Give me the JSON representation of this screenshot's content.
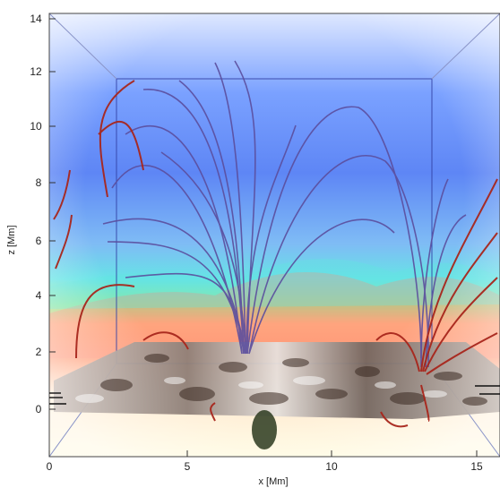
{
  "figure": {
    "x_axis": {
      "label": "x [Mm]",
      "ticks": [
        "0",
        "5",
        "10",
        "15"
      ]
    },
    "z_axis": {
      "label": "z [Mm]",
      "ticks": [
        "14",
        "12",
        "10",
        "8",
        "6",
        "4",
        "2",
        "0"
      ]
    }
  },
  "colors": {
    "top_blue": "#3a6fe6",
    "sky_blue": "#8fb3ff",
    "cyan": "#5fe9e0",
    "green": "#78e27a",
    "orange": "#ff9a70",
    "bottom_yellow": "#fff6c8",
    "field_line_blue": "#5b4e9e",
    "field_line_red": "#a8261c"
  }
}
